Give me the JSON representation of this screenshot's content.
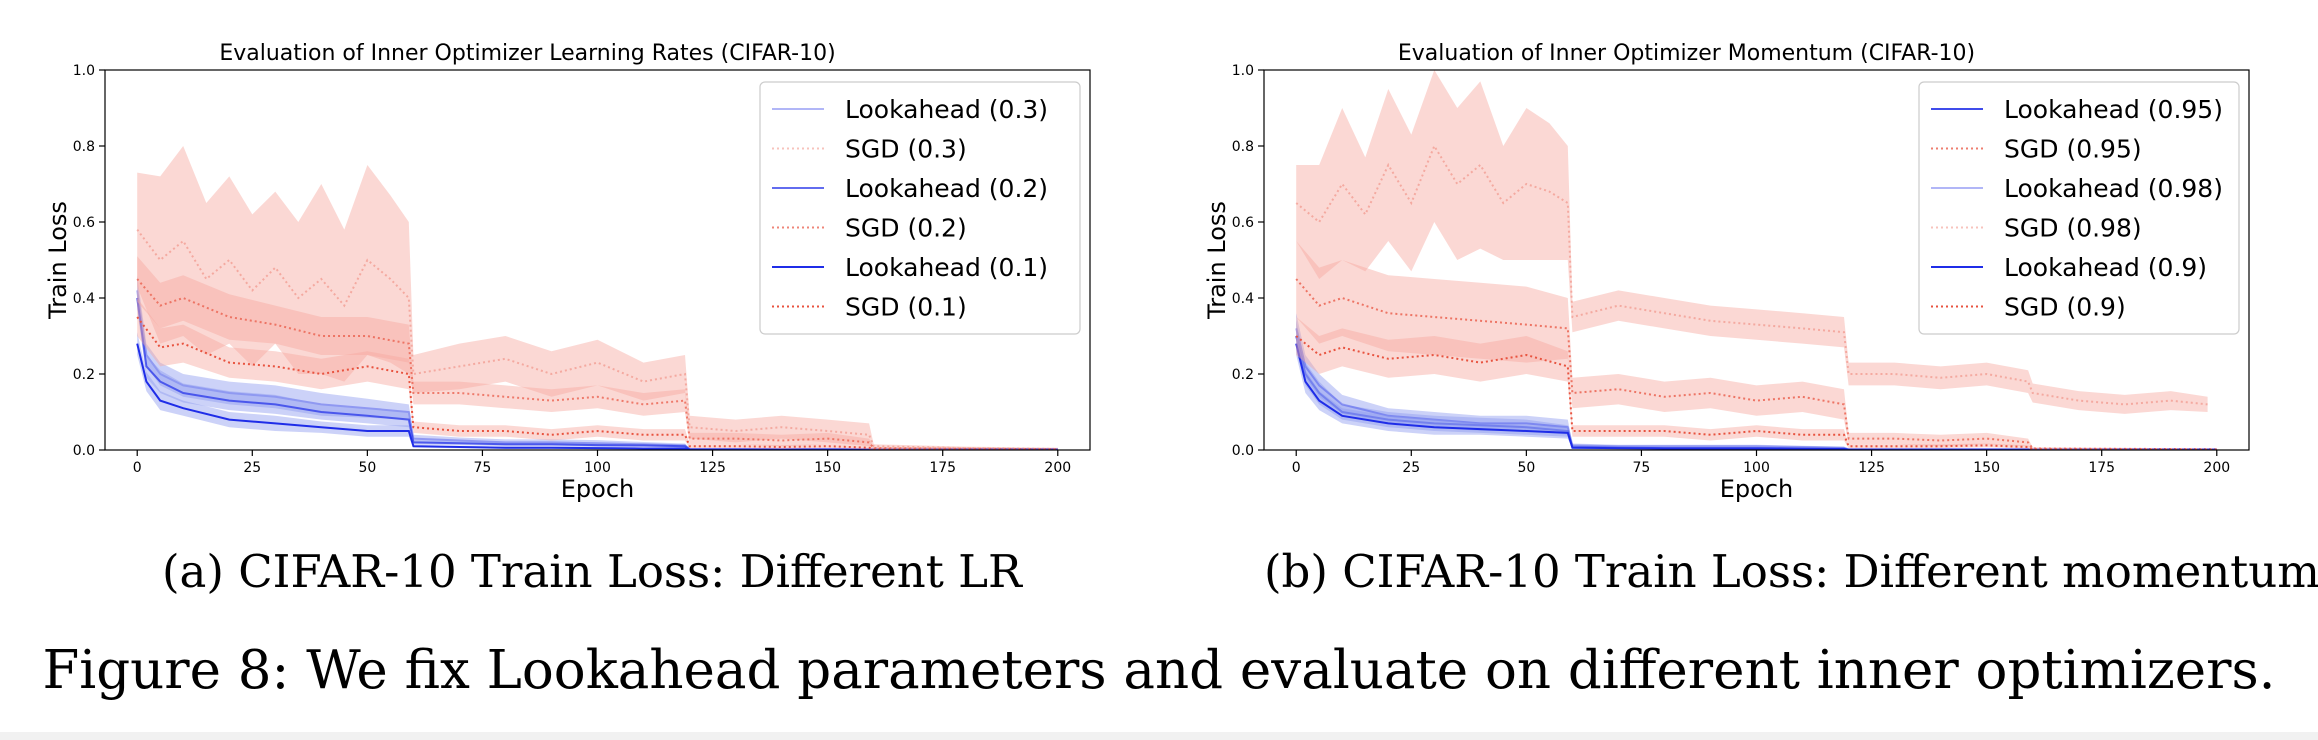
{
  "caption": "Figure 8: We fix Lookahead parameters and evaluate on different inner optimizers.",
  "colors": {
    "lookahead": "#1f2de8",
    "sgd": "#e8533f",
    "band_red": "#f7a9a0",
    "band_blue": "#8f9bf0",
    "legend_border": "#cccccc"
  },
  "chart_data": [
    {
      "type": "line",
      "subcaption": "(a) CIFAR-10 Train Loss: Different LR",
      "title": "Evaluation of Inner Optimizer Learning Rates (CIFAR-10)",
      "xlabel": "Epoch",
      "ylabel": "Train Loss",
      "xlim": [
        -7,
        207
      ],
      "ylim": [
        0,
        1
      ],
      "xticks": [
        0,
        25,
        50,
        75,
        100,
        125,
        150,
        175,
        200
      ],
      "yticks": [
        0.0,
        0.2,
        0.4,
        0.6,
        0.8,
        1.0
      ],
      "ytick_labels": [
        "0.0",
        "0.2",
        "0.4",
        "0.6",
        "0.8",
        "1.0"
      ],
      "grid": false,
      "legend_position": "top-right",
      "series": [
        {
          "name": "Lookahead (0.3)",
          "optimizer": "Lookahead",
          "alpha": 0.35,
          "x": [
            0,
            2,
            5,
            10,
            20,
            30,
            40,
            50,
            59,
            60,
            70,
            80,
            90,
            100,
            110,
            119,
            120,
            200
          ],
          "y": [
            0.42,
            0.25,
            0.2,
            0.17,
            0.15,
            0.14,
            0.12,
            0.11,
            0.1,
            0.03,
            0.025,
            0.02,
            0.02,
            0.018,
            0.015,
            0.012,
            0.002,
            0.001
          ],
          "band": [
            0.04,
            0.03,
            0.03,
            0.03,
            0.03,
            0.03,
            0.03,
            0.025,
            0.02,
            0.01,
            0.008,
            0.008,
            0.008,
            0.008,
            0.006,
            0.005,
            0.001,
            0.001
          ]
        },
        {
          "name": "SGD (0.3)",
          "optimizer": "SGD",
          "alpha": 0.35,
          "x": [
            0,
            5,
            10,
            15,
            20,
            25,
            30,
            35,
            40,
            45,
            50,
            55,
            59,
            60,
            70,
            80,
            90,
            100,
            110,
            119,
            120,
            130,
            140,
            150,
            159,
            160,
            180,
            200
          ],
          "y": [
            0.58,
            0.5,
            0.55,
            0.45,
            0.5,
            0.42,
            0.48,
            0.4,
            0.45,
            0.38,
            0.5,
            0.45,
            0.4,
            0.2,
            0.22,
            0.24,
            0.2,
            0.23,
            0.18,
            0.2,
            0.06,
            0.05,
            0.06,
            0.05,
            0.04,
            0.01,
            0.005,
            0.003
          ],
          "band": [
            0.15,
            0.22,
            0.25,
            0.2,
            0.22,
            0.2,
            0.2,
            0.2,
            0.25,
            0.2,
            0.25,
            0.22,
            0.2,
            0.05,
            0.06,
            0.06,
            0.06,
            0.06,
            0.05,
            0.05,
            0.03,
            0.03,
            0.03,
            0.03,
            0.03,
            0.005,
            0.004,
            0.003
          ]
        },
        {
          "name": "Lookahead (0.2)",
          "optimizer": "Lookahead",
          "alpha": 0.7,
          "x": [
            0,
            2,
            5,
            10,
            20,
            30,
            40,
            50,
            59,
            60,
            70,
            80,
            90,
            100,
            110,
            119,
            120,
            200
          ],
          "y": [
            0.4,
            0.22,
            0.18,
            0.15,
            0.13,
            0.12,
            0.1,
            0.09,
            0.08,
            0.02,
            0.018,
            0.015,
            0.015,
            0.013,
            0.012,
            0.01,
            0.002,
            0.001
          ],
          "band": [
            0.03,
            0.03,
            0.03,
            0.025,
            0.025,
            0.025,
            0.02,
            0.02,
            0.02,
            0.006,
            0.005,
            0.005,
            0.005,
            0.005,
            0.004,
            0.004,
            0.001,
            0.001
          ]
        },
        {
          "name": "SGD (0.2)",
          "optimizer": "SGD",
          "alpha": 0.7,
          "x": [
            0,
            5,
            10,
            20,
            30,
            40,
            50,
            59,
            60,
            70,
            80,
            90,
            100,
            110,
            119,
            120,
            130,
            140,
            150,
            159,
            160,
            200
          ],
          "y": [
            0.45,
            0.38,
            0.4,
            0.35,
            0.33,
            0.3,
            0.3,
            0.28,
            0.15,
            0.15,
            0.14,
            0.13,
            0.14,
            0.12,
            0.13,
            0.03,
            0.03,
            0.025,
            0.03,
            0.02,
            0.005,
            0.002
          ],
          "band": [
            0.06,
            0.06,
            0.06,
            0.06,
            0.05,
            0.05,
            0.05,
            0.05,
            0.03,
            0.03,
            0.03,
            0.03,
            0.03,
            0.03,
            0.03,
            0.015,
            0.015,
            0.015,
            0.015,
            0.01,
            0.003,
            0.002
          ]
        },
        {
          "name": "Lookahead (0.1)",
          "optimizer": "Lookahead",
          "alpha": 1.0,
          "x": [
            0,
            2,
            5,
            10,
            20,
            30,
            40,
            50,
            59,
            60,
            70,
            80,
            90,
            100,
            110,
            119,
            120,
            200
          ],
          "y": [
            0.28,
            0.18,
            0.13,
            0.11,
            0.08,
            0.07,
            0.06,
            0.05,
            0.05,
            0.01,
            0.008,
            0.006,
            0.006,
            0.005,
            0.004,
            0.004,
            0.001,
            0.001
          ],
          "band": [
            0.03,
            0.025,
            0.025,
            0.02,
            0.02,
            0.02,
            0.015,
            0.015,
            0.015,
            0.004,
            0.003,
            0.003,
            0.003,
            0.003,
            0.002,
            0.002,
            0.001,
            0.001
          ]
        },
        {
          "name": "SGD (0.1)",
          "optimizer": "SGD",
          "alpha": 1.0,
          "x": [
            0,
            5,
            10,
            20,
            30,
            40,
            50,
            59,
            60,
            70,
            80,
            90,
            100,
            110,
            119,
            120,
            130,
            140,
            150,
            159,
            160,
            200
          ],
          "y": [
            0.35,
            0.27,
            0.28,
            0.23,
            0.22,
            0.2,
            0.22,
            0.2,
            0.06,
            0.05,
            0.05,
            0.04,
            0.05,
            0.04,
            0.04,
            0.01,
            0.01,
            0.008,
            0.01,
            0.006,
            0.002,
            0.001
          ],
          "band": [
            0.05,
            0.05,
            0.05,
            0.04,
            0.04,
            0.04,
            0.04,
            0.04,
            0.015,
            0.015,
            0.015,
            0.015,
            0.015,
            0.015,
            0.015,
            0.005,
            0.005,
            0.005,
            0.005,
            0.004,
            0.002,
            0.001
          ]
        }
      ]
    },
    {
      "type": "line",
      "subcaption": "(b) CIFAR-10 Train Loss: Different momentum",
      "title": "Evaluation of Inner Optimizer Momentum (CIFAR-10)",
      "xlabel": "Epoch",
      "ylabel": "Train Loss",
      "xlim": [
        -7,
        207
      ],
      "ylim": [
        0,
        1
      ],
      "xticks": [
        0,
        25,
        50,
        75,
        100,
        125,
        150,
        175,
        200
      ],
      "yticks": [
        0.0,
        0.2,
        0.4,
        0.6,
        0.8,
        1.0
      ],
      "ytick_labels": [
        "0.0",
        "0.2",
        "0.4",
        "0.6",
        "0.8",
        "1.0"
      ],
      "grid": false,
      "legend_position": "top-right",
      "series": [
        {
          "name": "Lookahead (0.95)",
          "optimizer": "Lookahead",
          "alpha": 0.85,
          "x": [
            0,
            2,
            5,
            10,
            20,
            30,
            40,
            50,
            59,
            60,
            70,
            80,
            90,
            100,
            110,
            119,
            120,
            200
          ],
          "y": [
            0.3,
            0.2,
            0.15,
            0.1,
            0.08,
            0.07,
            0.065,
            0.06,
            0.05,
            0.008,
            0.006,
            0.005,
            0.005,
            0.005,
            0.004,
            0.003,
            0.001,
            0.001
          ],
          "band": [
            0.04,
            0.03,
            0.03,
            0.02,
            0.02,
            0.02,
            0.02,
            0.02,
            0.015,
            0.004,
            0.003,
            0.003,
            0.003,
            0.003,
            0.002,
            0.002,
            0.001,
            0.001
          ]
        },
        {
          "name": "SGD (0.95)",
          "optimizer": "SGD",
          "alpha": 0.75,
          "x": [
            0,
            5,
            10,
            20,
            30,
            40,
            50,
            59,
            60,
            70,
            80,
            90,
            100,
            110,
            119,
            120,
            130,
            140,
            150,
            159,
            160,
            200
          ],
          "y": [
            0.45,
            0.38,
            0.4,
            0.36,
            0.35,
            0.34,
            0.33,
            0.32,
            0.15,
            0.16,
            0.14,
            0.15,
            0.13,
            0.14,
            0.12,
            0.03,
            0.03,
            0.025,
            0.03,
            0.02,
            0.004,
            0.002
          ],
          "band": [
            0.1,
            0.1,
            0.1,
            0.1,
            0.1,
            0.1,
            0.1,
            0.08,
            0.04,
            0.04,
            0.04,
            0.04,
            0.04,
            0.04,
            0.04,
            0.015,
            0.015,
            0.015,
            0.015,
            0.01,
            0.003,
            0.002
          ]
        },
        {
          "name": "Lookahead (0.98)",
          "optimizer": "Lookahead",
          "alpha": 0.35,
          "x": [
            0,
            2,
            5,
            10,
            20,
            30,
            40,
            50,
            59,
            60,
            70,
            80,
            90,
            100,
            110,
            119,
            120,
            200
          ],
          "y": [
            0.32,
            0.22,
            0.17,
            0.12,
            0.09,
            0.08,
            0.07,
            0.07,
            0.06,
            0.012,
            0.01,
            0.01,
            0.01,
            0.01,
            0.008,
            0.006,
            0.002,
            0.001
          ],
          "band": [
            0.04,
            0.03,
            0.03,
            0.025,
            0.02,
            0.02,
            0.02,
            0.02,
            0.02,
            0.005,
            0.004,
            0.004,
            0.004,
            0.004,
            0.003,
            0.003,
            0.001,
            0.001
          ]
        },
        {
          "name": "SGD (0.98)",
          "optimizer": "SGD",
          "alpha": 0.35,
          "x": [
            0,
            5,
            10,
            15,
            20,
            25,
            30,
            35,
            40,
            45,
            50,
            55,
            59,
            60,
            70,
            80,
            90,
            100,
            110,
            119,
            120,
            130,
            140,
            150,
            159,
            160,
            170,
            180,
            190,
            198
          ],
          "y": [
            0.65,
            0.6,
            0.7,
            0.62,
            0.75,
            0.65,
            0.8,
            0.7,
            0.75,
            0.65,
            0.7,
            0.68,
            0.65,
            0.35,
            0.38,
            0.36,
            0.34,
            0.33,
            0.32,
            0.31,
            0.2,
            0.2,
            0.19,
            0.2,
            0.18,
            0.15,
            0.13,
            0.12,
            0.13,
            0.12
          ],
          "band": [
            0.1,
            0.15,
            0.2,
            0.15,
            0.2,
            0.18,
            0.2,
            0.2,
            0.22,
            0.15,
            0.2,
            0.18,
            0.15,
            0.04,
            0.04,
            0.04,
            0.04,
            0.04,
            0.04,
            0.04,
            0.03,
            0.03,
            0.03,
            0.03,
            0.03,
            0.025,
            0.025,
            0.025,
            0.025,
            0.02
          ]
        },
        {
          "name": "Lookahead (0.9)",
          "optimizer": "Lookahead",
          "alpha": 1.0,
          "x": [
            0,
            2,
            5,
            10,
            20,
            30,
            40,
            50,
            59,
            60,
            70,
            80,
            90,
            100,
            110,
            119,
            120,
            200
          ],
          "y": [
            0.28,
            0.18,
            0.13,
            0.09,
            0.07,
            0.06,
            0.055,
            0.05,
            0.045,
            0.006,
            0.005,
            0.004,
            0.004,
            0.004,
            0.003,
            0.003,
            0.001,
            0.001
          ],
          "band": [
            0.03,
            0.03,
            0.025,
            0.02,
            0.02,
            0.02,
            0.015,
            0.015,
            0.015,
            0.003,
            0.003,
            0.002,
            0.002,
            0.002,
            0.002,
            0.002,
            0.001,
            0.001
          ]
        },
        {
          "name": "SGD (0.9)",
          "optimizer": "SGD",
          "alpha": 1.0,
          "x": [
            0,
            5,
            10,
            20,
            30,
            40,
            50,
            59,
            60,
            70,
            80,
            90,
            100,
            110,
            119,
            120,
            130,
            140,
            150,
            159,
            160,
            200
          ],
          "y": [
            0.3,
            0.25,
            0.27,
            0.24,
            0.25,
            0.23,
            0.25,
            0.22,
            0.05,
            0.05,
            0.05,
            0.04,
            0.05,
            0.04,
            0.04,
            0.01,
            0.01,
            0.01,
            0.012,
            0.008,
            0.002,
            0.001
          ],
          "band": [
            0.05,
            0.05,
            0.05,
            0.05,
            0.05,
            0.05,
            0.05,
            0.04,
            0.015,
            0.015,
            0.015,
            0.015,
            0.015,
            0.015,
            0.015,
            0.005,
            0.005,
            0.005,
            0.005,
            0.004,
            0.002,
            0.001
          ]
        }
      ]
    }
  ]
}
